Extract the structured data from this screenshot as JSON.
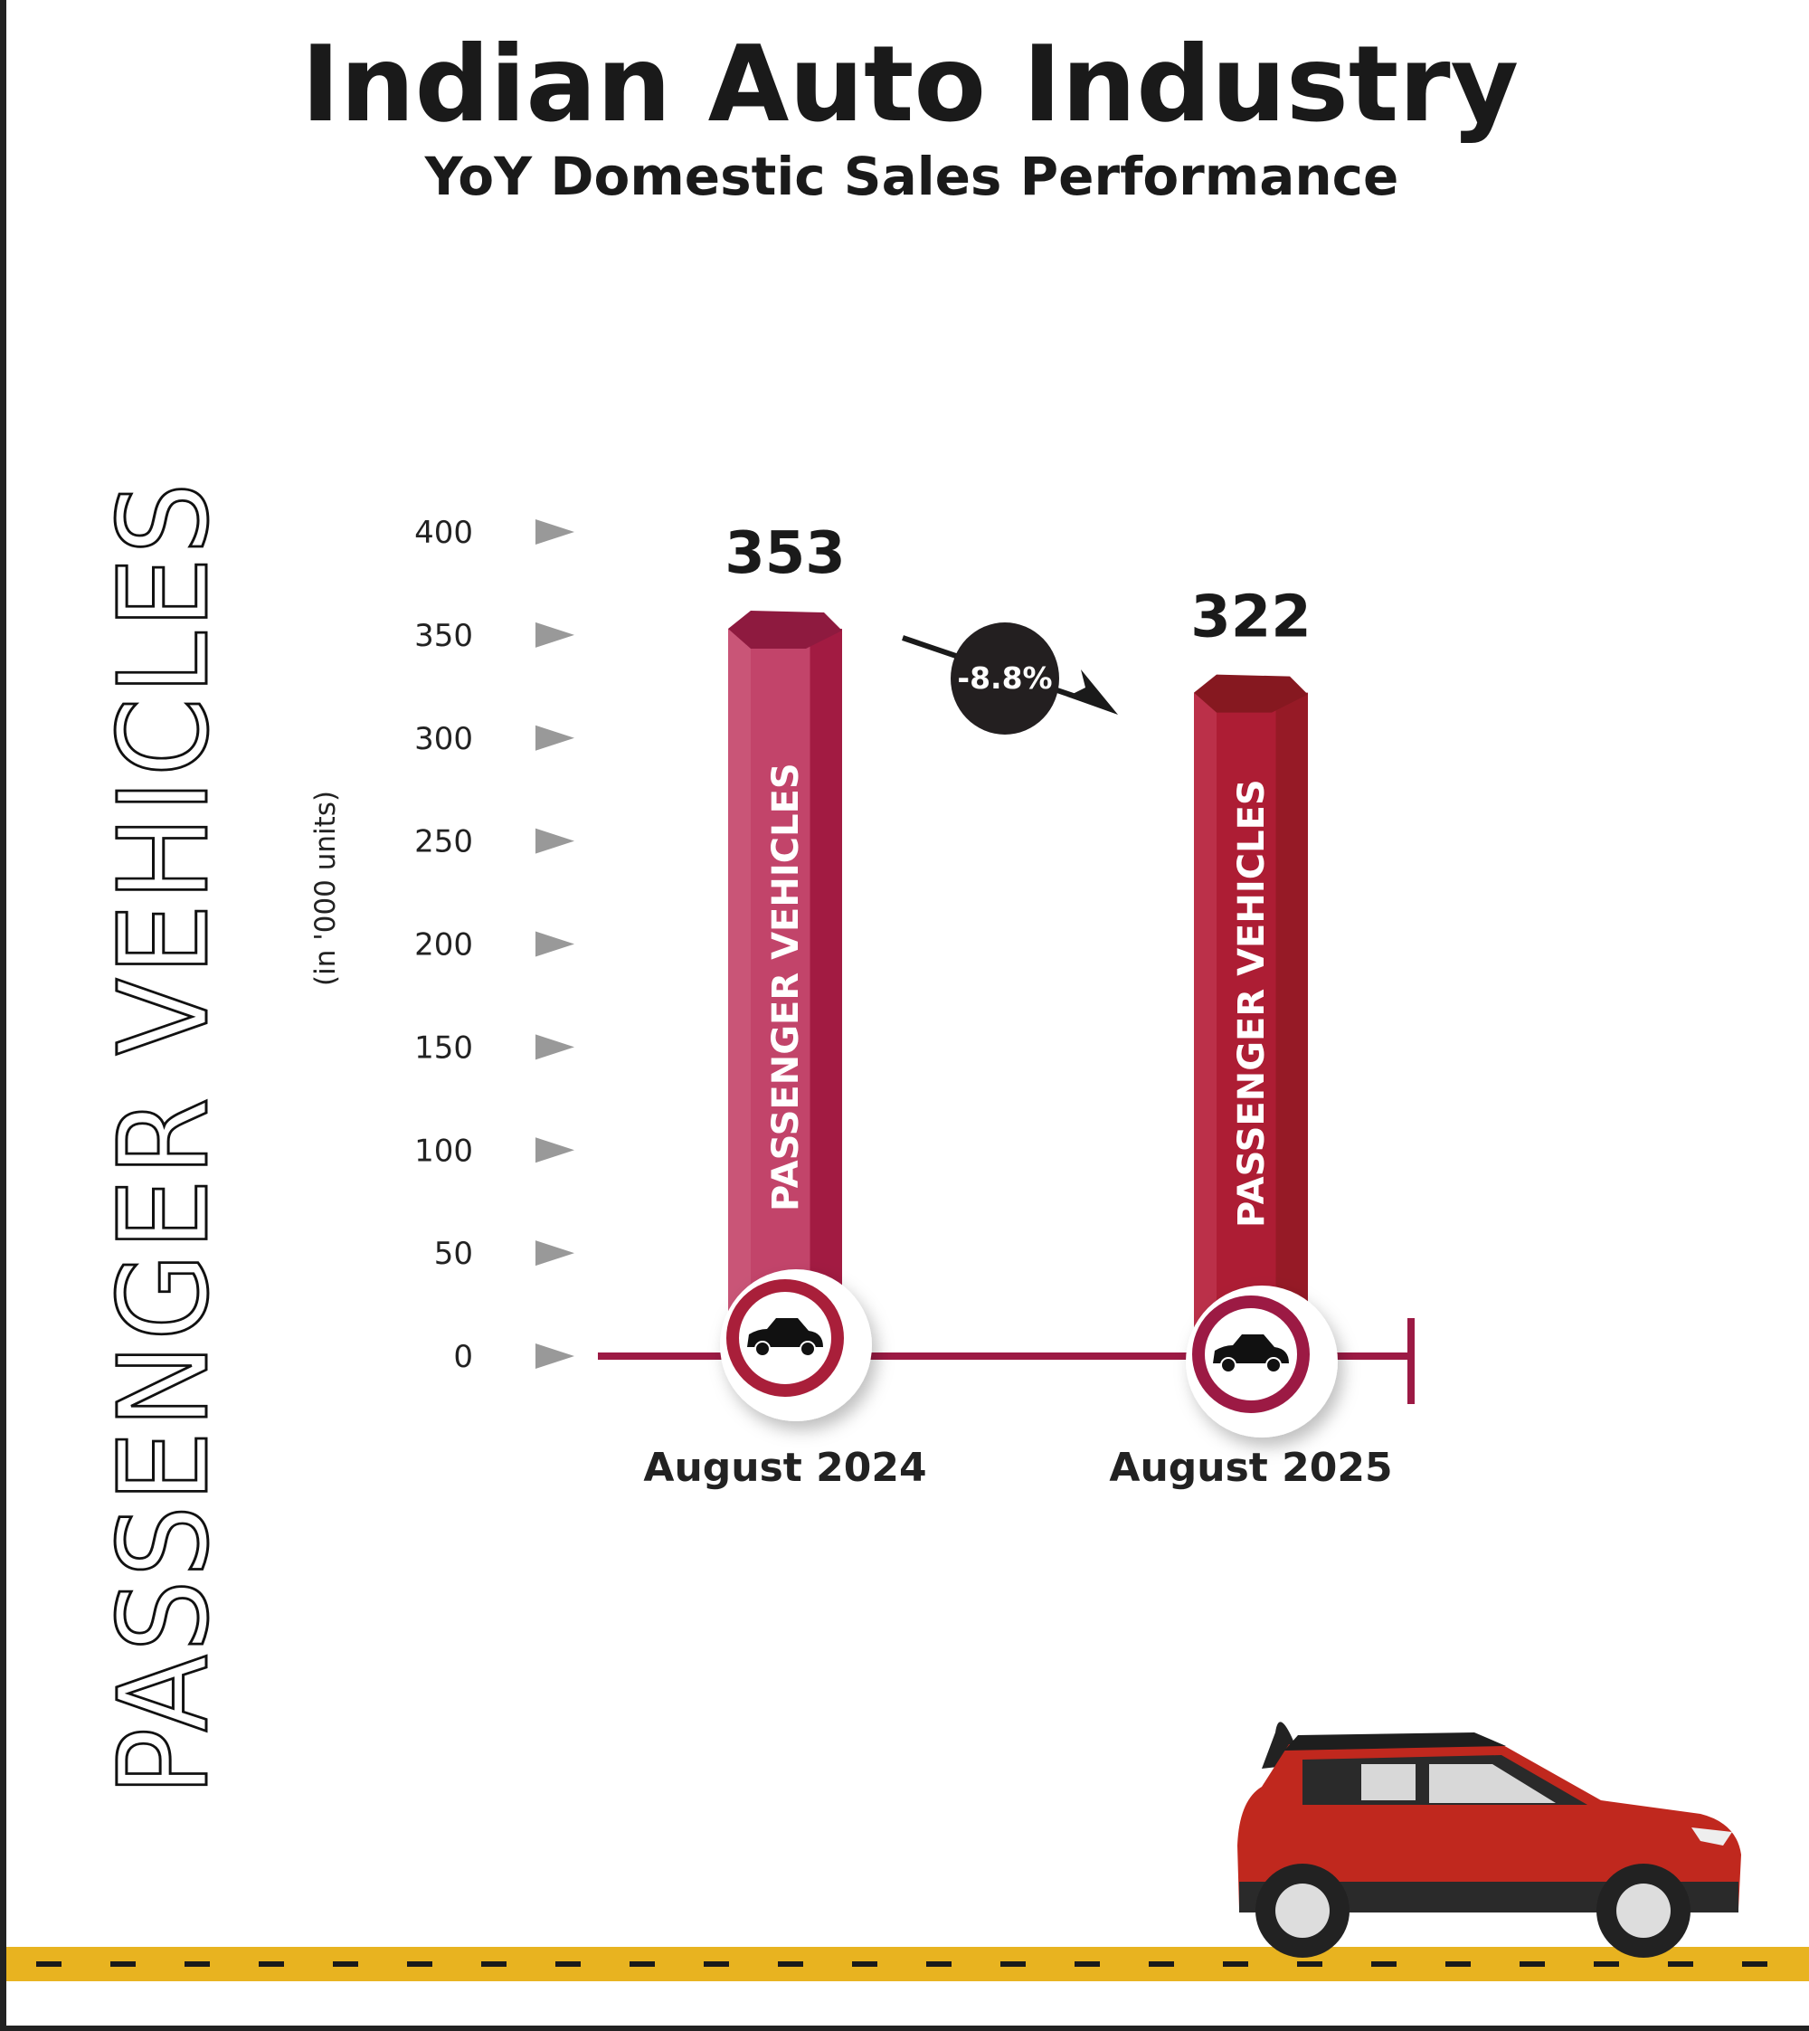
{
  "chart_data": {
    "type": "bar",
    "title": "Indian Auto Industry",
    "subtitle": "YoY Domestic Sales Performance",
    "side_label": "PASSENGER VEHICLES",
    "ylabel": "(in '000 units)",
    "ylim": [
      0,
      400
    ],
    "yticks": [
      0,
      50,
      100,
      150,
      200,
      250,
      300,
      350,
      400
    ],
    "categories": [
      "August 2024",
      "August 2025"
    ],
    "values": [
      353,
      322
    ],
    "value_labels": [
      "353",
      "322"
    ],
    "bar_labels": [
      "PASSENGER VEHICLES",
      "PASSENGER VEHICLES"
    ],
    "change_label": "-8.8%",
    "grid": false
  },
  "colors": {
    "bar1": "#c4456b",
    "bar2": "#b0203a",
    "axis": "#9c1a44",
    "road": "#e8b320",
    "car": "#c0281e"
  }
}
